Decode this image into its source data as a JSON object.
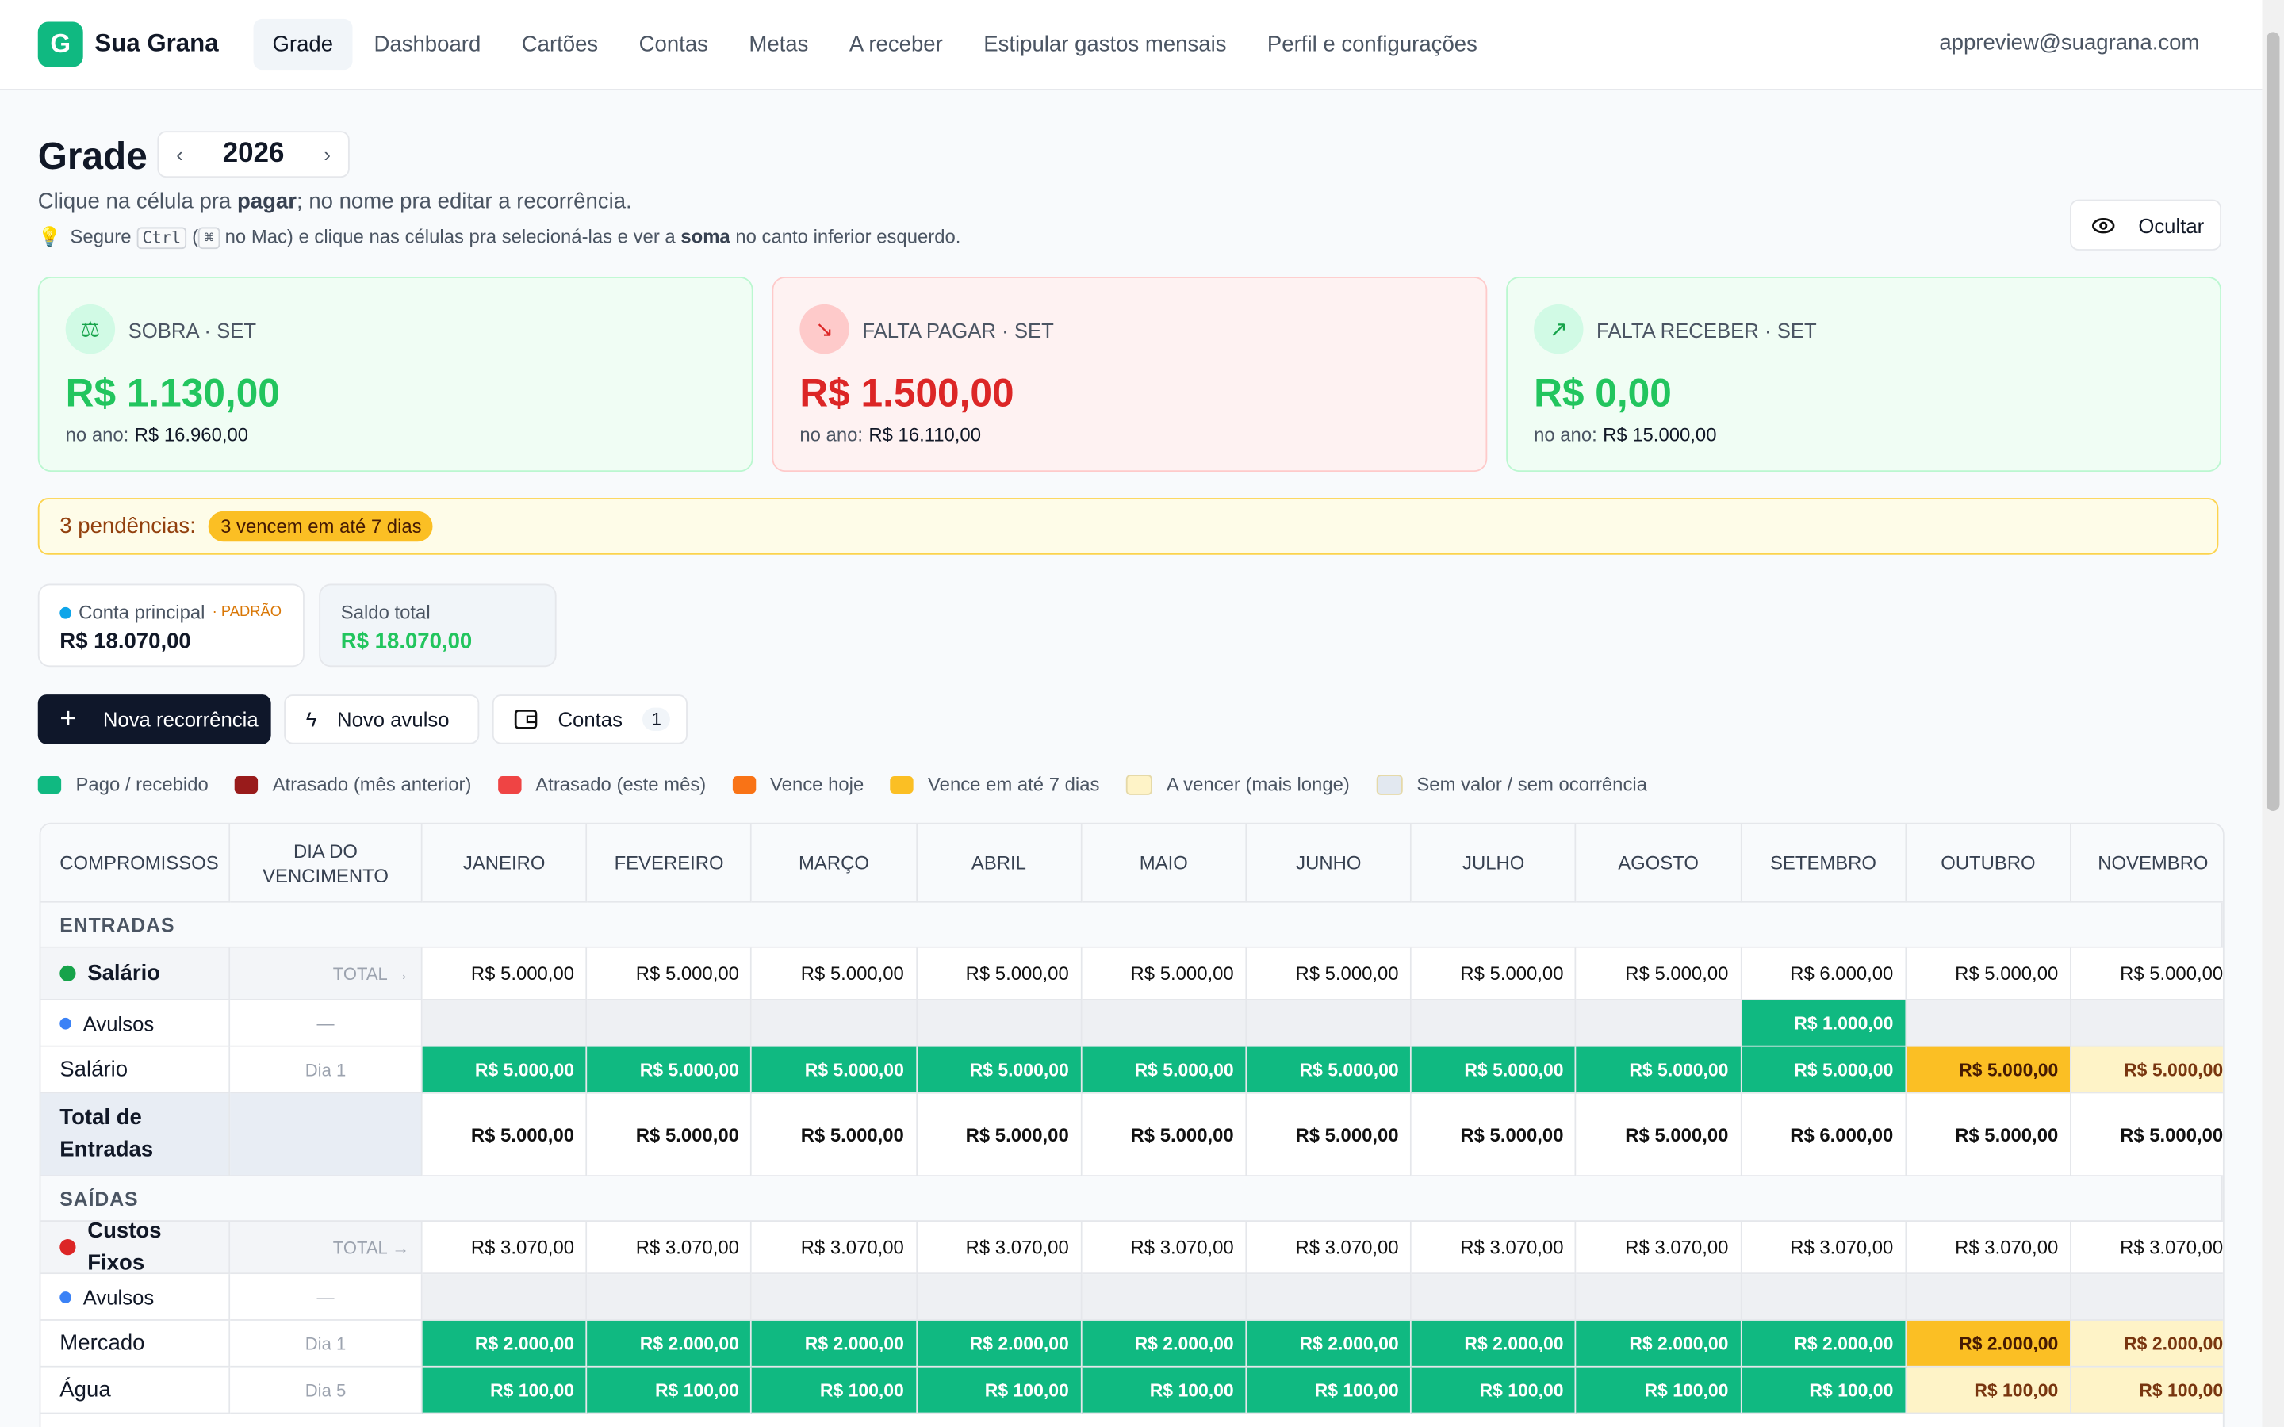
{
  "nav": {
    "logo": "G",
    "brand": "Sua Grana",
    "links": [
      "Grade",
      "Dashboard",
      "Cartões",
      "Contas",
      "Metas",
      "A receber",
      "Estipular gastos mensais",
      "Perfil e configurações"
    ],
    "active": 0,
    "user": "appreview@suagrana.com"
  },
  "header": {
    "title": "Grade",
    "year": "2026",
    "hint": [
      "Clique na célula pra ",
      "pagar",
      "; no nome pra editar a recorrência."
    ],
    "tip": [
      "💡",
      "Segure ",
      "Ctrl",
      " (",
      "⌘",
      " no Mac) e clique nas células pra selecioná-las e ver a ",
      "soma",
      " no canto inferior esquerdo."
    ],
    "hide": "Ocultar"
  },
  "cards": [
    {
      "label": "SOBRA · SET",
      "value": "R$ 1.130,00",
      "year_label": "no ano:",
      "year_value": "R$ 16.960,00",
      "tone": "green"
    },
    {
      "label": "FALTA PAGAR · SET",
      "value": "R$ 1.500,00",
      "year_label": "no ano:",
      "year_value": "R$ 16.110,00",
      "tone": "red"
    },
    {
      "label": "FALTA RECEBER · SET",
      "value": "R$ 0,00",
      "year_label": "no ano:",
      "year_value": "R$ 15.000,00",
      "tone": "green"
    }
  ],
  "pending": {
    "label": "3 pendências:",
    "badge": "3 vencem em até 7 dias"
  },
  "accounts": {
    "items": [
      {
        "name": "Conta principal",
        "tag": "· PADRÃO",
        "value": "R$ 18.070,00"
      }
    ],
    "total_label": "Saldo total",
    "total_value": "R$ 18.070,00"
  },
  "actions": {
    "new_recurrence": "Nova recorrência",
    "new_single": "Novo avulso",
    "accounts": "Contas",
    "accounts_count": "1"
  },
  "legend": [
    {
      "label": "Pago / recebido",
      "color": "#10b981"
    },
    {
      "label": "Atrasado (mês anterior)",
      "color": "#991b1b"
    },
    {
      "label": "Atrasado (este mês)",
      "color": "#ef4444"
    },
    {
      "label": "Vence hoje",
      "color": "#f97316"
    },
    {
      "label": "Vence em até 7 dias",
      "color": "#fbbf24"
    },
    {
      "label": "A vencer (mais longe)",
      "color": "#fef3c7"
    },
    {
      "label": "Sem valor / sem ocorrência",
      "color": "#e2e8f0"
    }
  ],
  "table": {
    "headers": [
      "COMPROMISSOS",
      "DIA DO VENCIMENTO",
      "JANEIRO",
      "FEVEREIRO",
      "MARÇO",
      "ABRIL",
      "MAIO",
      "JUNHO",
      "JULHO",
      "AGOSTO",
      "SETEMBRO",
      "OUTUBRO",
      "NOVEMBRO"
    ],
    "rows": [
      {
        "kind": "section",
        "name": "ENTRADAS"
      },
      {
        "kind": "group",
        "dot": "#16a34a",
        "name": "Salário",
        "due": "TOTAL →",
        "cells": [
          "R$ 5.000,00",
          "R$ 5.000,00",
          "R$ 5.000,00",
          "R$ 5.000,00",
          "R$ 5.000,00",
          "R$ 5.000,00",
          "R$ 5.000,00",
          "R$ 5.000,00",
          "R$ 6.000,00",
          "R$ 5.000,00",
          "R$ 5.000,00"
        ],
        "status": [
          "plain",
          "plain",
          "plain",
          "plain",
          "plain",
          "plain",
          "plain",
          "plain",
          "plain",
          "plain",
          "plain"
        ]
      },
      {
        "kind": "single",
        "dot": "#3b82f6",
        "name": "Avulsos",
        "due": "—",
        "cells": [
          "",
          "",
          "",
          "",
          "",
          "",
          "",
          "",
          "R$ 1.000,00",
          "",
          ""
        ],
        "status": [
          "empty",
          "empty",
          "empty",
          "empty",
          "empty",
          "empty",
          "empty",
          "empty",
          "paid",
          "empty",
          "empty"
        ]
      },
      {
        "kind": "item",
        "name": "Salário",
        "due": "Dia 1",
        "cells": [
          "R$ 5.000,00",
          "R$ 5.000,00",
          "R$ 5.000,00",
          "R$ 5.000,00",
          "R$ 5.000,00",
          "R$ 5.000,00",
          "R$ 5.000,00",
          "R$ 5.000,00",
          "R$ 5.000,00",
          "R$ 5.000,00",
          "R$ 5.000,00"
        ],
        "status": [
          "paid",
          "paid",
          "paid",
          "paid",
          "paid",
          "paid",
          "paid",
          "paid",
          "paid",
          "soon",
          "later"
        ]
      },
      {
        "kind": "total",
        "name": "Total de Entradas",
        "due": "",
        "cells": [
          "R$ 5.000,00",
          "R$ 5.000,00",
          "R$ 5.000,00",
          "R$ 5.000,00",
          "R$ 5.000,00",
          "R$ 5.000,00",
          "R$ 5.000,00",
          "R$ 5.000,00",
          "R$ 6.000,00",
          "R$ 5.000,00",
          "R$ 5.000,00"
        ],
        "status": [
          "plain",
          "plain",
          "plain",
          "plain",
          "plain",
          "plain",
          "plain",
          "plain",
          "plain",
          "plain",
          "plain"
        ]
      },
      {
        "kind": "section",
        "name": "SAÍDAS"
      },
      {
        "kind": "group",
        "dot": "#dc2626",
        "name": "Custos Fixos",
        "due": "TOTAL →",
        "cells": [
          "R$ 3.070,00",
          "R$ 3.070,00",
          "R$ 3.070,00",
          "R$ 3.070,00",
          "R$ 3.070,00",
          "R$ 3.070,00",
          "R$ 3.070,00",
          "R$ 3.070,00",
          "R$ 3.070,00",
          "R$ 3.070,00",
          "R$ 3.070,00"
        ],
        "status": [
          "plain",
          "plain",
          "plain",
          "plain",
          "plain",
          "plain",
          "plain",
          "plain",
          "plain",
          "plain",
          "plain"
        ]
      },
      {
        "kind": "single",
        "dot": "#3b82f6",
        "name": "Avulsos",
        "due": "—",
        "cells": [
          "",
          "",
          "",
          "",
          "",
          "",
          "",
          "",
          "",
          "",
          ""
        ],
        "status": [
          "empty",
          "empty",
          "empty",
          "empty",
          "empty",
          "empty",
          "empty",
          "empty",
          "empty",
          "empty",
          "empty"
        ]
      },
      {
        "kind": "item",
        "name": "Mercado",
        "due": "Dia 1",
        "cells": [
          "R$ 2.000,00",
          "R$ 2.000,00",
          "R$ 2.000,00",
          "R$ 2.000,00",
          "R$ 2.000,00",
          "R$ 2.000,00",
          "R$ 2.000,00",
          "R$ 2.000,00",
          "R$ 2.000,00",
          "R$ 2.000,00",
          "R$ 2.000,00"
        ],
        "status": [
          "paid",
          "paid",
          "paid",
          "paid",
          "paid",
          "paid",
          "paid",
          "paid",
          "paid",
          "soon",
          "later"
        ]
      },
      {
        "kind": "item",
        "name": "Água",
        "due": "Dia 5",
        "cells": [
          "R$ 100,00",
          "R$ 100,00",
          "R$ 100,00",
          "R$ 100,00",
          "R$ 100,00",
          "R$ 100,00",
          "R$ 100,00",
          "R$ 100,00",
          "R$ 100,00",
          "R$ 100,00",
          "R$ 100,00"
        ],
        "status": [
          "paid",
          "paid",
          "paid",
          "paid",
          "paid",
          "paid",
          "paid",
          "paid",
          "paid",
          "later",
          "later"
        ]
      }
    ]
  }
}
